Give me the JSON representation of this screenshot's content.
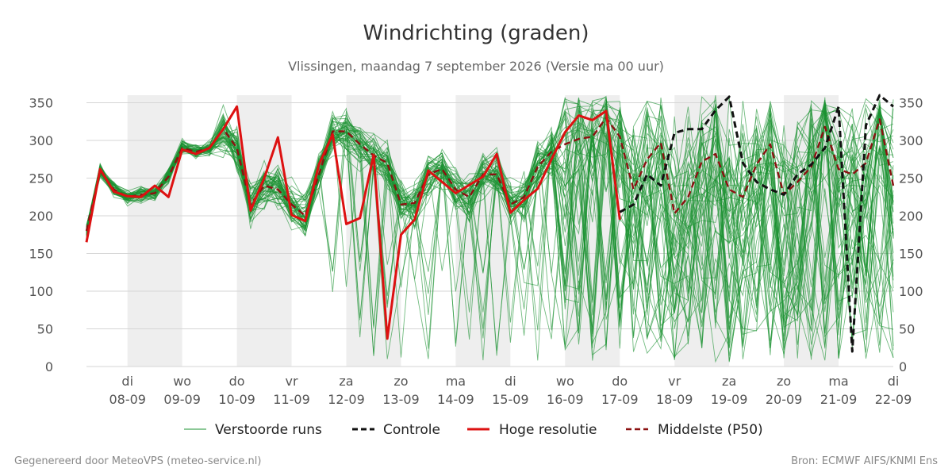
{
  "chart_data": {
    "type": "line",
    "title": "Windrichting (graden)",
    "subtitle": "Vlissingen, maandag  7 september 2026 (Versie ma 00 uur)",
    "ylim": [
      0,
      360
    ],
    "yticks": [
      0,
      50,
      100,
      150,
      200,
      250,
      300,
      350
    ],
    "xlim": [
      -0.75,
      14
    ],
    "grid": true,
    "legend_position": "bottom",
    "x_ticks": [
      {
        "x": 0,
        "day": "di",
        "date": "08-09"
      },
      {
        "x": 1,
        "day": "wo",
        "date": "09-09"
      },
      {
        "x": 2,
        "day": "do",
        "date": "10-09"
      },
      {
        "x": 3,
        "day": "vr",
        "date": "11-09"
      },
      {
        "x": 4,
        "day": "za",
        "date": "12-09"
      },
      {
        "x": 5,
        "day": "zo",
        "date": "13-09"
      },
      {
        "x": 6,
        "day": "ma",
        "date": "14-09"
      },
      {
        "x": 7,
        "day": "di",
        "date": "15-09"
      },
      {
        "x": 8,
        "day": "wo",
        "date": "16-09"
      },
      {
        "x": 9,
        "day": "do",
        "date": "17-09"
      },
      {
        "x": 10,
        "day": "vr",
        "date": "18-09"
      },
      {
        "x": 11,
        "day": "za",
        "date": "19-09"
      },
      {
        "x": 12,
        "day": "zo",
        "date": "20-09"
      },
      {
        "x": 13,
        "day": "ma",
        "date": "21-09"
      },
      {
        "x": 14,
        "day": "di",
        "date": "22-09"
      }
    ],
    "shaded_days": [
      [
        0,
        1
      ],
      [
        2,
        3
      ],
      [
        4,
        5
      ],
      [
        6,
        7
      ],
      [
        8,
        9
      ],
      [
        10,
        11
      ],
      [
        12,
        13
      ]
    ],
    "series": [
      {
        "name": "Hoge resolutie",
        "color": "#dd1111",
        "style": "solid",
        "x": [
          -0.75,
          -0.5,
          -0.25,
          0,
          0.25,
          0.5,
          0.75,
          1,
          1.25,
          1.5,
          1.75,
          2,
          2.25,
          2.5,
          2.75,
          3,
          3.25,
          3.5,
          3.75,
          4,
          4.25,
          4.5,
          4.75,
          5,
          5.25,
          5.5,
          5.75,
          6,
          6.25,
          6.5,
          6.75,
          7,
          7.25,
          7.5,
          7.75,
          8,
          8.25,
          8.5,
          8.75,
          9
        ],
        "y": [
          165,
          262,
          232,
          226,
          225,
          240,
          225,
          288,
          282,
          290,
          315,
          345,
          207,
          250,
          304,
          201,
          193,
          268,
          308,
          189,
          197,
          281,
          37,
          175,
          195,
          260,
          245,
          230,
          241,
          252,
          282,
          204,
          221,
          236,
          275,
          311,
          333,
          327,
          339,
          195
        ]
      },
      {
        "name": "Controle",
        "color": "#111111",
        "style": "dashed",
        "x": [
          9,
          9.25,
          9.5,
          9.75,
          10,
          10.25,
          10.5,
          10.75,
          11,
          11.25,
          11.5,
          11.75,
          12,
          12.25,
          12.5,
          12.75,
          13,
          13.25,
          13.5,
          13.75,
          14
        ],
        "y": [
          205,
          215,
          255,
          240,
          310,
          315,
          315,
          340,
          358,
          270,
          245,
          235,
          228,
          255,
          268,
          290,
          345,
          20,
          320,
          360,
          345
        ]
      },
      {
        "name": "Middelste (P50)",
        "color": "#8b1111",
        "style": "dashed",
        "x": [
          -0.75,
          -0.5,
          -0.25,
          0,
          0.25,
          0.5,
          0.75,
          1,
          1.25,
          1.5,
          1.75,
          2,
          2.25,
          2.5,
          2.75,
          3,
          3.25,
          3.5,
          3.75,
          4,
          4.25,
          4.5,
          4.75,
          5,
          5.25,
          5.5,
          5.75,
          6,
          6.25,
          6.5,
          6.75,
          7,
          7.25,
          7.5,
          7.75,
          8,
          8.25,
          8.5,
          8.75,
          9,
          9.25,
          9.5,
          9.75,
          10,
          10.25,
          10.5,
          10.75,
          11,
          11.25,
          11.5,
          11.75,
          12,
          12.25,
          12.5,
          12.75,
          13,
          13.25,
          13.5,
          13.75,
          14
        ],
        "y": [
          180,
          260,
          235,
          225,
          228,
          230,
          252,
          290,
          285,
          290,
          315,
          290,
          215,
          240,
          235,
          215,
          200,
          255,
          312,
          312,
          295,
          280,
          270,
          215,
          217,
          255,
          262,
          235,
          225,
          255,
          255,
          215,
          225,
          265,
          285,
          295,
          302,
          305,
          330,
          305,
          235,
          275,
          297,
          203,
          225,
          272,
          282,
          235,
          225,
          268,
          295,
          228,
          245,
          265,
          318,
          262,
          255,
          270,
          328,
          240
        ]
      }
    ],
    "ensemble": {
      "name": "Verstoorde runs",
      "color": "#1a9130",
      "x_start": -0.75,
      "x_step": 0.25,
      "member_count": 50
    }
  },
  "legend": {
    "items": [
      {
        "label": "Verstoorde runs",
        "color": "#1a9130",
        "style": "thin"
      },
      {
        "label": "Controle",
        "color": "#111111",
        "style": "dashed"
      },
      {
        "label": "Hoge resolutie",
        "color": "#dd1111",
        "style": "solid"
      },
      {
        "label": "Middelste (P50)",
        "color": "#8b1111",
        "style": "dashed"
      }
    ]
  },
  "footer": {
    "left": "Gegenereerd door MeteoVPS (meteo-service.nl)",
    "right": "Bron: ECMWF AIFS/KNMI Ens"
  }
}
